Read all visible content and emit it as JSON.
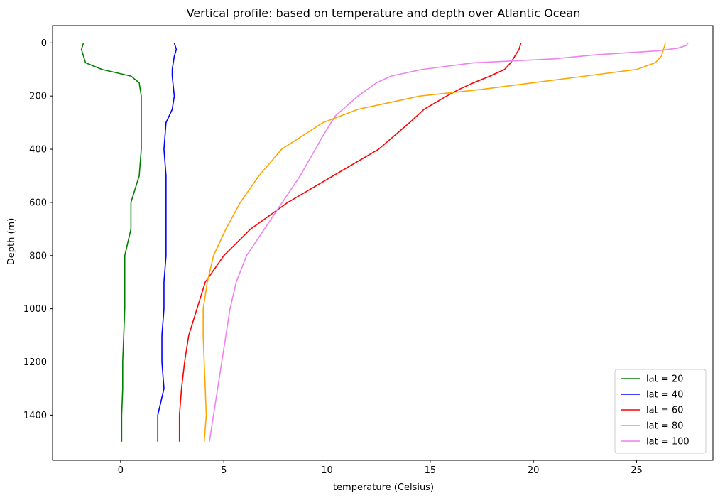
{
  "chart_data": {
    "type": "line",
    "title": "Vertical profile: based on temperature and depth over Atlantic Ocean",
    "xlabel": "temperature (Celsius)",
    "ylabel": "Depth (m)",
    "xlim": [
      -3.3,
      28.7
    ],
    "ylim": [
      1570,
      -65
    ],
    "y_inverted": true,
    "xticks": [
      0,
      5,
      10,
      15,
      20,
      25
    ],
    "yticks": [
      0,
      200,
      400,
      600,
      800,
      1000,
      1200,
      1400
    ],
    "grid": false,
    "legend_position": "bottom-right",
    "series": [
      {
        "name": "lat = 20",
        "color": "#008000",
        "points": [
          [
            -1.8,
            0
          ],
          [
            -1.9,
            25
          ],
          [
            -1.7,
            75
          ],
          [
            -0.9,
            100
          ],
          [
            0.5,
            125
          ],
          [
            0.9,
            150
          ],
          [
            1.0,
            200
          ],
          [
            1.0,
            250
          ],
          [
            1.0,
            300
          ],
          [
            1.0,
            400
          ],
          [
            0.9,
            500
          ],
          [
            0.5,
            600
          ],
          [
            0.5,
            700
          ],
          [
            0.2,
            800
          ],
          [
            0.2,
            900
          ],
          [
            0.2,
            1000
          ],
          [
            0.15,
            1100
          ],
          [
            0.1,
            1200
          ],
          [
            0.1,
            1300
          ],
          [
            0.05,
            1400
          ],
          [
            0.05,
            1500
          ]
        ]
      },
      {
        "name": "lat = 40",
        "color": "#0000ff",
        "points": [
          [
            2.6,
            0
          ],
          [
            2.7,
            25
          ],
          [
            2.6,
            50
          ],
          [
            2.5,
            100
          ],
          [
            2.5,
            125
          ],
          [
            2.6,
            200
          ],
          [
            2.5,
            250
          ],
          [
            2.2,
            300
          ],
          [
            2.1,
            400
          ],
          [
            2.2,
            500
          ],
          [
            2.2,
            600
          ],
          [
            2.2,
            700
          ],
          [
            2.2,
            800
          ],
          [
            2.1,
            900
          ],
          [
            2.1,
            1000
          ],
          [
            2.0,
            1100
          ],
          [
            2.0,
            1200
          ],
          [
            2.1,
            1300
          ],
          [
            1.8,
            1400
          ],
          [
            1.8,
            1500
          ]
        ]
      },
      {
        "name": "lat = 60",
        "color": "#ff0000",
        "points": [
          [
            19.4,
            0
          ],
          [
            19.3,
            25
          ],
          [
            19.1,
            50
          ],
          [
            18.9,
            75
          ],
          [
            18.6,
            100
          ],
          [
            17.9,
            125
          ],
          [
            17.1,
            150
          ],
          [
            16.4,
            175
          ],
          [
            15.8,
            200
          ],
          [
            14.7,
            250
          ],
          [
            14.0,
            300
          ],
          [
            12.5,
            400
          ],
          [
            10.3,
            500
          ],
          [
            8.1,
            600
          ],
          [
            6.3,
            700
          ],
          [
            5.0,
            800
          ],
          [
            4.1,
            900
          ],
          [
            3.7,
            1000
          ],
          [
            3.3,
            1100
          ],
          [
            3.1,
            1200
          ],
          [
            2.95,
            1300
          ],
          [
            2.85,
            1400
          ],
          [
            2.85,
            1500
          ]
        ]
      },
      {
        "name": "lat = 80",
        "color": "#ffa500",
        "points": [
          [
            26.4,
            0
          ],
          [
            26.3,
            25
          ],
          [
            26.2,
            50
          ],
          [
            25.9,
            75
          ],
          [
            25.0,
            100
          ],
          [
            22.5,
            125
          ],
          [
            20.0,
            150
          ],
          [
            17.5,
            175
          ],
          [
            14.5,
            200
          ],
          [
            13.0,
            225
          ],
          [
            11.5,
            250
          ],
          [
            9.8,
            300
          ],
          [
            7.8,
            400
          ],
          [
            6.7,
            500
          ],
          [
            5.8,
            600
          ],
          [
            5.1,
            700
          ],
          [
            4.5,
            800
          ],
          [
            4.2,
            900
          ],
          [
            4.0,
            1000
          ],
          [
            4.0,
            1100
          ],
          [
            4.05,
            1200
          ],
          [
            4.1,
            1300
          ],
          [
            4.15,
            1400
          ],
          [
            4.05,
            1500
          ]
        ]
      },
      {
        "name": "lat = 100",
        "color": "#ee82ee",
        "points": [
          [
            27.5,
            0
          ],
          [
            27.4,
            10
          ],
          [
            27.0,
            20
          ],
          [
            26.0,
            30
          ],
          [
            23.0,
            45
          ],
          [
            21.0,
            60
          ],
          [
            17.1,
            75
          ],
          [
            14.6,
            100
          ],
          [
            13.1,
            125
          ],
          [
            12.4,
            150
          ],
          [
            11.5,
            200
          ],
          [
            10.4,
            275
          ],
          [
            9.8,
            350
          ],
          [
            8.7,
            500
          ],
          [
            7.4,
            650
          ],
          [
            6.1,
            800
          ],
          [
            5.6,
            900
          ],
          [
            5.3,
            1000
          ],
          [
            5.1,
            1100
          ],
          [
            4.9,
            1200
          ],
          [
            4.7,
            1300
          ],
          [
            4.5,
            1400
          ],
          [
            4.3,
            1500
          ]
        ]
      }
    ]
  }
}
